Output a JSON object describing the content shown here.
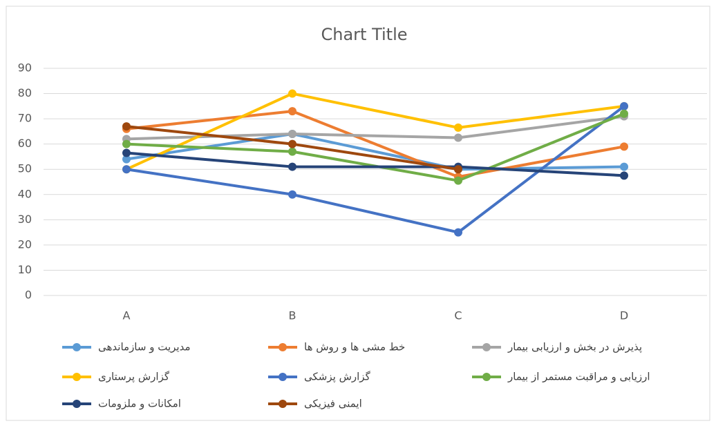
{
  "chart_data": {
    "type": "line",
    "title": "Chart Title",
    "categories": [
      "A",
      "B",
      "C",
      "D"
    ],
    "ylim": [
      0,
      90
    ],
    "yticks": [
      0,
      10,
      20,
      30,
      40,
      50,
      60,
      70,
      80,
      90
    ],
    "grid": true,
    "series": [
      {
        "name": "مدیریت و سازماندهی",
        "color": "#5B9BD5",
        "values": [
          54,
          64,
          50,
          51
        ]
      },
      {
        "name": "خط مشی ها و روش ها",
        "color": "#ED7D31",
        "values": [
          66,
          73,
          47,
          59
        ]
      },
      {
        "name": "پذیرش در بخش و ارزیابی بیمار",
        "color": "#A5A5A5",
        "values": [
          62,
          64,
          62.5,
          71
        ]
      },
      {
        "name": "گزارش پرستاری",
        "color": "#FFC000",
        "values": [
          50,
          80,
          66.5,
          75
        ]
      },
      {
        "name": "گزارش پزشکی",
        "color": "#4472C4",
        "values": [
          50,
          40,
          25,
          75
        ]
      },
      {
        "name": "ارزیابی و مراقبت مستمر از بیمار",
        "color": "#70AD47",
        "values": [
          60,
          57,
          45.5,
          72
        ]
      },
      {
        "name": "امکانات و ملزومات",
        "color": "#264478",
        "values": [
          56.5,
          51,
          51,
          47.5
        ]
      },
      {
        "name": "ایمنی فیزیکی",
        "color": "#9E480E",
        "values": [
          67,
          60,
          50,
          null
        ]
      }
    ]
  }
}
